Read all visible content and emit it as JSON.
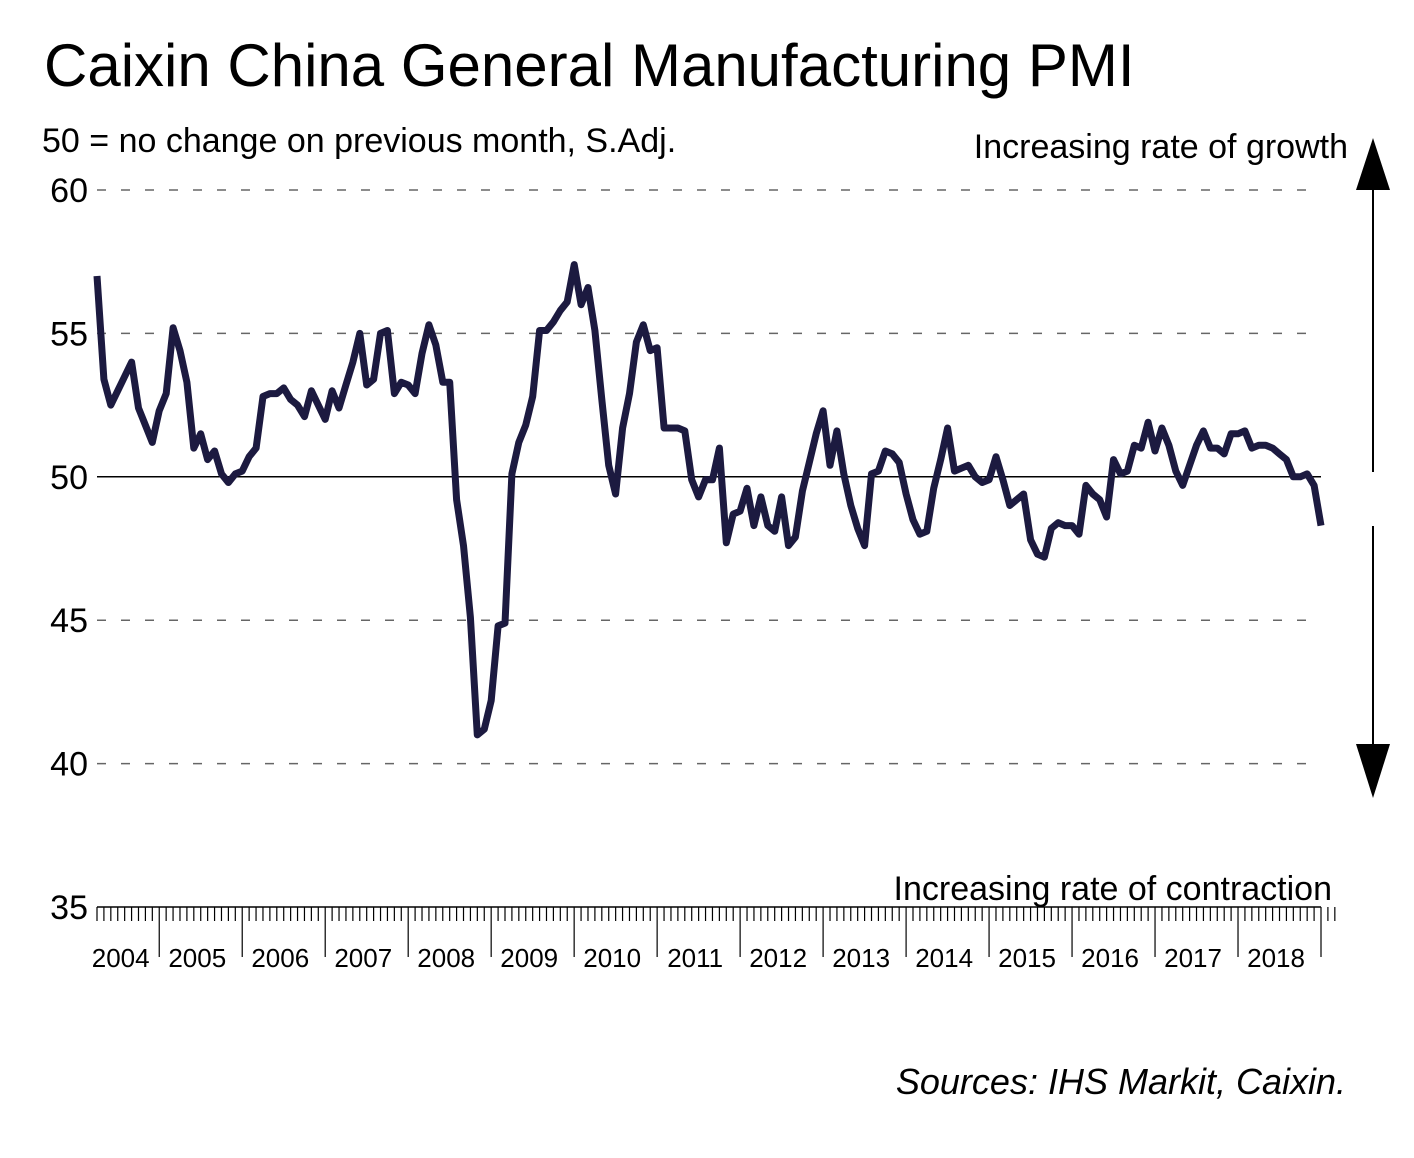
{
  "chart_data": {
    "type": "line",
    "title": "Caixin China General Manufacturing PMI",
    "subtitle": "50 = no change on previous month, S.Adj.",
    "annotation_top": "Increasing rate of growth",
    "annotation_bottom": "Increasing rate of contraction",
    "source": "Sources: IHS Markit, Caixin.",
    "ylim": [
      35,
      60
    ],
    "yticks": [
      "60",
      "55",
      "50",
      "45",
      "40",
      "35"
    ],
    "reference_line": 50,
    "grid": "dashed horizontal",
    "x_labels": [
      "2004",
      "2005",
      "2006",
      "2007",
      "2008",
      "2009",
      "2010",
      "2011",
      "2012",
      "2013",
      "2014",
      "2015",
      "2016",
      "2017",
      "2018"
    ],
    "x_start": "2004-04",
    "series": [
      {
        "name": "",
        "color": "#1c1a40",
        "values": [
          57.0,
          53.4,
          52.5,
          53.0,
          53.5,
          54.0,
          52.4,
          51.8,
          51.2,
          52.3,
          52.9,
          55.2,
          54.4,
          53.3,
          51.0,
          51.5,
          50.6,
          50.9,
          50.1,
          49.8,
          50.1,
          50.2,
          50.7,
          51.0,
          52.8,
          52.9,
          52.9,
          53.1,
          52.7,
          52.5,
          52.1,
          53.0,
          52.5,
          52.0,
          53.0,
          52.4,
          53.2,
          54.0,
          55.0,
          53.2,
          53.4,
          55.0,
          55.1,
          52.9,
          53.3,
          53.2,
          52.9,
          54.3,
          55.3,
          54.6,
          53.3,
          53.3,
          49.2,
          47.6,
          45.1,
          41.0,
          41.2,
          42.2,
          44.8,
          44.9,
          50.1,
          51.2,
          51.8,
          52.8,
          55.1,
          55.1,
          55.4,
          55.8,
          56.1,
          57.4,
          56.0,
          56.6,
          55.1,
          52.7,
          50.4,
          49.4,
          51.7,
          52.9,
          54.7,
          55.3,
          54.4,
          54.5,
          51.7,
          51.7,
          51.7,
          51.6,
          49.9,
          49.3,
          49.9,
          49.9,
          51.0,
          47.7,
          48.7,
          48.8,
          49.6,
          48.3,
          49.3,
          48.3,
          48.1,
          49.3,
          47.6,
          47.9,
          49.5,
          50.5,
          51.5,
          52.3,
          50.4,
          51.6,
          50.1,
          49.0,
          48.2,
          47.6,
          50.1,
          50.2,
          50.9,
          50.8,
          50.5,
          49.4,
          48.5,
          48.0,
          48.1,
          49.6,
          50.6,
          51.7,
          50.2,
          50.3,
          50.4,
          50.0,
          49.8,
          49.9,
          50.7,
          49.9,
          49.0,
          49.2,
          49.4,
          47.8,
          47.3,
          47.2,
          48.2,
          48.4,
          48.3,
          48.3,
          48.0,
          49.7,
          49.4,
          49.2,
          48.6,
          50.6,
          50.1,
          50.2,
          51.1,
          51.0,
          51.9,
          50.9,
          51.7,
          51.1,
          50.2,
          49.7,
          50.4,
          51.1,
          51.6,
          51.0,
          51.0,
          50.8,
          51.5,
          51.5,
          51.6,
          51.0,
          51.1,
          51.1,
          51.0,
          50.8,
          50.6,
          50.0,
          50.0,
          50.1,
          49.7,
          48.3
        ]
      }
    ]
  }
}
